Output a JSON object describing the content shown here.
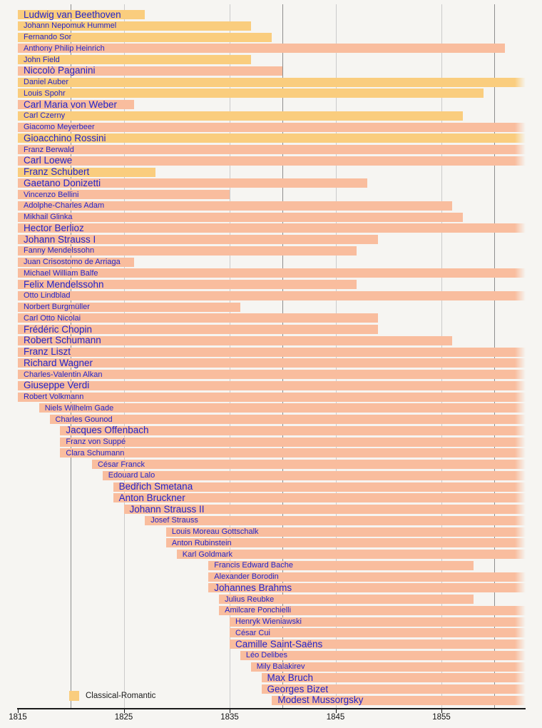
{
  "legend": {
    "items": [
      {
        "label": "Classical-Romantic",
        "color": "#FACD7E"
      }
    ]
  },
  "chart_data": {
    "type": "timeline",
    "title": "",
    "x_axis": {
      "unit": "year",
      "start": 1815,
      "end": 1863,
      "ticks": [
        1815,
        1825,
        1835,
        1845,
        1855
      ],
      "gridlines_minor": [
        1825,
        1835,
        1845,
        1855
      ],
      "gridlines_major": [
        1820,
        1840,
        1860
      ],
      "grid_on": true
    },
    "label_color": "#2323c8",
    "groups": [
      {
        "id": "classical-romantic",
        "label": "Classical-Romantic",
        "color": "#FACD7E"
      },
      {
        "id": "romantic",
        "label": "",
        "color": "#F9BD9E"
      }
    ],
    "composers": [
      {
        "name": "Ludwig van Beethoven",
        "from": 1815,
        "to": 1827,
        "group": "classical-romantic",
        "emphasis": "large"
      },
      {
        "name": "Johann Nepomuk Hummel",
        "from": 1815,
        "to": 1837,
        "group": "classical-romantic",
        "emphasis": "small"
      },
      {
        "name": "Fernando Sor",
        "from": 1815,
        "to": 1839,
        "group": "classical-romantic",
        "emphasis": "small"
      },
      {
        "name": "Anthony Philip Heinrich",
        "from": 1815,
        "to": 1861,
        "group": "romantic",
        "emphasis": "small"
      },
      {
        "name": "John Field",
        "from": 1815,
        "to": 1837,
        "group": "classical-romantic",
        "emphasis": "small"
      },
      {
        "name": "Niccolò Paganini",
        "from": 1815,
        "to": 1840,
        "group": "romantic",
        "emphasis": "large"
      },
      {
        "name": "Daniel Auber",
        "from": 1815,
        "to": null,
        "group": "classical-romantic",
        "emphasis": "small"
      },
      {
        "name": "Louis Spohr",
        "from": 1815,
        "to": 1859,
        "group": "classical-romantic",
        "emphasis": "small"
      },
      {
        "name": "Carl Maria von Weber",
        "from": 1815,
        "to": 1826,
        "group": "romantic",
        "emphasis": "large"
      },
      {
        "name": "Carl Czerny",
        "from": 1815,
        "to": 1857,
        "group": "classical-romantic",
        "emphasis": "small"
      },
      {
        "name": "Giacomo Meyerbeer",
        "from": 1815,
        "to": null,
        "group": "romantic",
        "emphasis": "small"
      },
      {
        "name": "Gioacchino Rossini",
        "from": 1815,
        "to": null,
        "group": "classical-romantic",
        "emphasis": "large"
      },
      {
        "name": "Franz Berwald",
        "from": 1815,
        "to": null,
        "group": "romantic",
        "emphasis": "small"
      },
      {
        "name": "Carl Loewe",
        "from": 1815,
        "to": null,
        "group": "romantic",
        "emphasis": "large"
      },
      {
        "name": "Franz Schubert",
        "from": 1815,
        "to": 1828,
        "group": "classical-romantic",
        "emphasis": "large"
      },
      {
        "name": "Gaetano Donizetti",
        "from": 1815,
        "to": 1848,
        "group": "romantic",
        "emphasis": "large"
      },
      {
        "name": "Vincenzo Bellini",
        "from": 1815,
        "to": 1835,
        "group": "romantic",
        "emphasis": "small"
      },
      {
        "name": "Adolphe-Charles Adam",
        "from": 1815,
        "to": 1856,
        "group": "romantic",
        "emphasis": "small"
      },
      {
        "name": "Mikhail Glinka",
        "from": 1815,
        "to": 1857,
        "group": "romantic",
        "emphasis": "small"
      },
      {
        "name": "Hector Berlioz",
        "from": 1815,
        "to": null,
        "group": "romantic",
        "emphasis": "large"
      },
      {
        "name": "Johann Strauss I",
        "from": 1815,
        "to": 1849,
        "group": "romantic",
        "emphasis": "large"
      },
      {
        "name": "Fanny Mendelssohn",
        "from": 1815,
        "to": 1847,
        "group": "romantic",
        "emphasis": "small"
      },
      {
        "name": "Juan Crisostomo de Arriaga",
        "from": 1815,
        "to": 1826,
        "group": "romantic",
        "emphasis": "small"
      },
      {
        "name": "Michael William Balfe",
        "from": 1815,
        "to": null,
        "group": "romantic",
        "emphasis": "small"
      },
      {
        "name": "Felix Mendelssohn",
        "from": 1815,
        "to": 1847,
        "group": "romantic",
        "emphasis": "large"
      },
      {
        "name": "Otto Lindblad",
        "from": 1815,
        "to": null,
        "group": "romantic",
        "emphasis": "small"
      },
      {
        "name": "Norbert Burgmüller",
        "from": 1815,
        "to": 1836,
        "group": "romantic",
        "emphasis": "small"
      },
      {
        "name": "Carl Otto Nicolai",
        "from": 1815,
        "to": 1849,
        "group": "romantic",
        "emphasis": "small"
      },
      {
        "name": "Frédéric Chopin",
        "from": 1815,
        "to": 1849,
        "group": "romantic",
        "emphasis": "large"
      },
      {
        "name": "Robert Schumann",
        "from": 1815,
        "to": 1856,
        "group": "romantic",
        "emphasis": "large"
      },
      {
        "name": "Franz Liszt",
        "from": 1815,
        "to": null,
        "group": "romantic",
        "emphasis": "large"
      },
      {
        "name": "Richard Wagner",
        "from": 1815,
        "to": null,
        "group": "romantic",
        "emphasis": "large"
      },
      {
        "name": "Charles-Valentin Alkan",
        "from": 1815,
        "to": null,
        "group": "romantic",
        "emphasis": "small"
      },
      {
        "name": "Giuseppe Verdi",
        "from": 1815,
        "to": null,
        "group": "romantic",
        "emphasis": "large"
      },
      {
        "name": "Robert Volkmann",
        "from": 1815,
        "to": null,
        "group": "romantic",
        "emphasis": "small"
      },
      {
        "name": "Niels Wilhelm Gade",
        "from": 1817,
        "to": null,
        "group": "romantic",
        "emphasis": "small"
      },
      {
        "name": "Charles Gounod",
        "from": 1818,
        "to": null,
        "group": "romantic",
        "emphasis": "small"
      },
      {
        "name": "Jacques Offenbach",
        "from": 1819,
        "to": null,
        "group": "romantic",
        "emphasis": "large"
      },
      {
        "name": "Franz von Suppé",
        "from": 1819,
        "to": null,
        "group": "romantic",
        "emphasis": "small"
      },
      {
        "name": "Clara Schumann",
        "from": 1819,
        "to": null,
        "group": "romantic",
        "emphasis": "small"
      },
      {
        "name": "César Franck",
        "from": 1822,
        "to": null,
        "group": "romantic",
        "emphasis": "small"
      },
      {
        "name": "Edouard Lalo",
        "from": 1823,
        "to": null,
        "group": "romantic",
        "emphasis": "small"
      },
      {
        "name": "Bedřich Smetana",
        "from": 1824,
        "to": null,
        "group": "romantic",
        "emphasis": "large"
      },
      {
        "name": "Anton Bruckner",
        "from": 1824,
        "to": null,
        "group": "romantic",
        "emphasis": "large"
      },
      {
        "name": "Johann Strauss II",
        "from": 1825,
        "to": null,
        "group": "romantic",
        "emphasis": "large"
      },
      {
        "name": "Josef Strauss",
        "from": 1827,
        "to": null,
        "group": "romantic",
        "emphasis": "small"
      },
      {
        "name": "Louis Moreau Gottschalk",
        "from": 1829,
        "to": null,
        "group": "romantic",
        "emphasis": "small"
      },
      {
        "name": "Anton Rubinstein",
        "from": 1829,
        "to": null,
        "group": "romantic",
        "emphasis": "small"
      },
      {
        "name": "Karl Goldmark",
        "from": 1830,
        "to": null,
        "group": "romantic",
        "emphasis": "small"
      },
      {
        "name": "Francis Edward Bache",
        "from": 1833,
        "to": 1858,
        "group": "romantic",
        "emphasis": "small"
      },
      {
        "name": "Alexander Borodin",
        "from": 1833,
        "to": null,
        "group": "romantic",
        "emphasis": "small"
      },
      {
        "name": "Johannes Brahms",
        "from": 1833,
        "to": null,
        "group": "romantic",
        "emphasis": "large"
      },
      {
        "name": "Julius Reubke",
        "from": 1834,
        "to": 1858,
        "group": "romantic",
        "emphasis": "small"
      },
      {
        "name": "Amilcare Ponchielli",
        "from": 1834,
        "to": null,
        "group": "romantic",
        "emphasis": "small"
      },
      {
        "name": "Henryk Wieniawski",
        "from": 1835,
        "to": null,
        "group": "romantic",
        "emphasis": "small"
      },
      {
        "name": "César Cui",
        "from": 1835,
        "to": null,
        "group": "romantic",
        "emphasis": "small"
      },
      {
        "name": "Camille Saint-Saëns",
        "from": 1835,
        "to": null,
        "group": "romantic",
        "emphasis": "large"
      },
      {
        "name": "Léo Delibes",
        "from": 1836,
        "to": null,
        "group": "romantic",
        "emphasis": "small"
      },
      {
        "name": "Mily Balakirev",
        "from": 1837,
        "to": null,
        "group": "romantic",
        "emphasis": "small"
      },
      {
        "name": "Max Bruch",
        "from": 1838,
        "to": null,
        "group": "romantic",
        "emphasis": "large"
      },
      {
        "name": "Georges Bizet",
        "from": 1838,
        "to": null,
        "group": "romantic",
        "emphasis": "large"
      },
      {
        "name": "Modest Mussorgsky",
        "from": 1839,
        "to": null,
        "group": "romantic",
        "emphasis": "large"
      }
    ]
  }
}
